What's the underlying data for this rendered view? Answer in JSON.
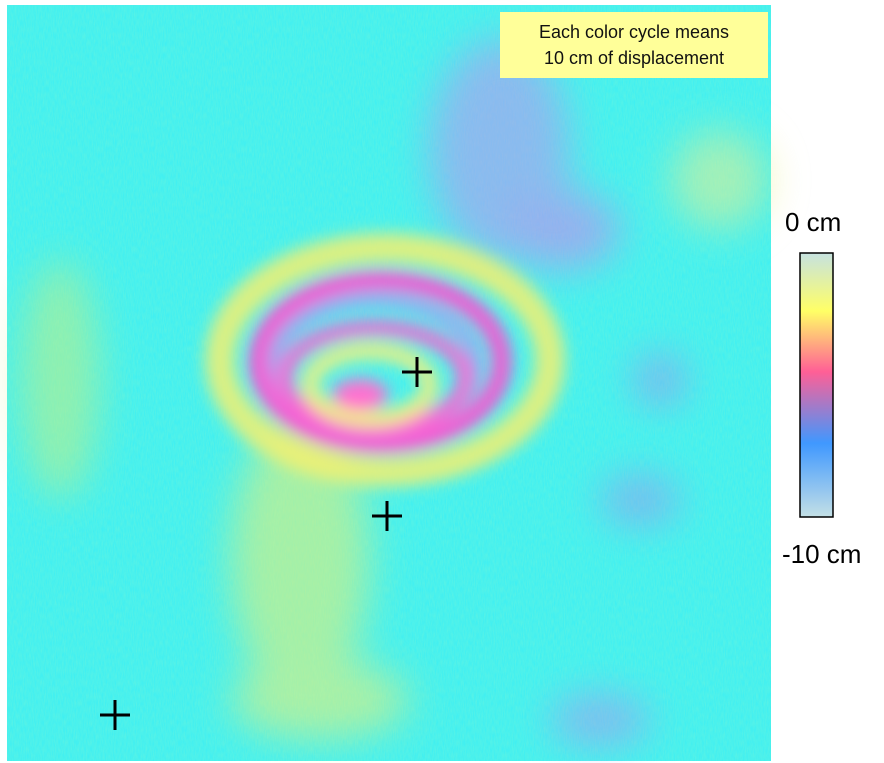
{
  "annotation": {
    "lines": [
      "Each color cycle means",
      "10 cm of displacement"
    ]
  },
  "colorbar": {
    "top_label": "0 cm",
    "bottom_label": "-10 cm"
  }
}
